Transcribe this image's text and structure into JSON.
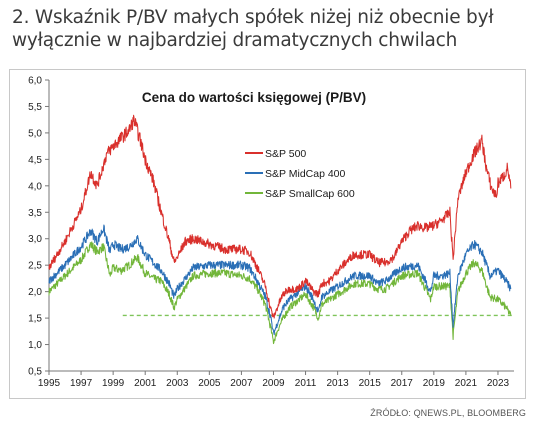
{
  "heading": "2. Wskaźnik P/BV małych spółek niżej niż obecnie był wyłącznie w najbardziej dramatycznych chwilach",
  "source": "ŹRÓDŁO: QNEWS.PL, BLOOMBERG",
  "chart_data": {
    "type": "line",
    "title": "Cena do wartości księgowej (P/BV)",
    "xlabel": "",
    "ylabel": "",
    "xlim": [
      1995,
      2024
    ],
    "ylim": [
      0.5,
      6.0
    ],
    "x_ticks": [
      "1995",
      "1997",
      "1999",
      "2001",
      "2003",
      "2005",
      "2007",
      "2009",
      "2011",
      "2013",
      "2015",
      "2017",
      "2019",
      "2021",
      "2023"
    ],
    "y_ticks": [
      "0,5",
      "1,0",
      "1,5",
      "2,0",
      "2,5",
      "3,0",
      "3,5",
      "4,0",
      "4,5",
      "5,0",
      "5,5",
      "6,0"
    ],
    "legend_position": "top-center",
    "grid": false,
    "series": [
      {
        "name": "S&P 500",
        "color": "#d9302c",
        "x": [
          1995.0,
          1996.0,
          1997.0,
          1997.6,
          1998.0,
          1998.6,
          1999.0,
          1999.5,
          2000.0,
          2000.3,
          2000.7,
          2001.0,
          2001.5,
          2002.0,
          2002.5,
          2002.8,
          2003.0,
          2003.5,
          2004.0,
          2005.0,
          2006.0,
          2007.0,
          2007.5,
          2008.0,
          2008.5,
          2008.8,
          2009.0,
          2009.3,
          2009.6,
          2010.0,
          2010.5,
          2011.0,
          2011.5,
          2011.8,
          2012.0,
          2012.5,
          2013.0,
          2014.0,
          2015.0,
          2015.5,
          2016.0,
          2016.5,
          2017.0,
          2017.5,
          2018.0,
          2018.5,
          2019.0,
          2019.5,
          2020.0,
          2020.2,
          2020.5,
          2021.0,
          2021.5,
          2022.0,
          2022.3,
          2022.6,
          2022.9,
          2023.0,
          2023.4,
          2023.6,
          2023.8
        ],
        "values": [
          2.45,
          2.95,
          3.55,
          4.25,
          4.0,
          4.6,
          4.75,
          4.9,
          5.05,
          5.25,
          4.85,
          4.5,
          4.1,
          3.5,
          2.95,
          2.55,
          2.65,
          2.95,
          3.0,
          2.9,
          2.8,
          2.8,
          2.75,
          2.45,
          2.1,
          1.7,
          1.5,
          1.75,
          1.95,
          2.05,
          2.05,
          2.2,
          2.0,
          1.95,
          2.15,
          2.2,
          2.4,
          2.7,
          2.7,
          2.55,
          2.55,
          2.65,
          2.95,
          3.15,
          3.25,
          3.2,
          3.25,
          3.35,
          3.5,
          2.6,
          3.75,
          4.25,
          4.6,
          4.85,
          4.3,
          3.95,
          3.8,
          4.05,
          4.2,
          4.35,
          3.95
        ]
      },
      {
        "name": "S&P MidCap 400",
        "color": "#2a6fb6",
        "x": [
          1995.0,
          1996.0,
          1997.0,
          1997.6,
          1998.0,
          1998.4,
          1998.8,
          1999.0,
          1999.5,
          2000.0,
          2000.5,
          2001.0,
          2001.5,
          2002.0,
          2002.5,
          2002.8,
          2003.0,
          2004.0,
          2005.0,
          2006.0,
          2007.0,
          2007.5,
          2008.0,
          2008.5,
          2008.8,
          2009.0,
          2009.3,
          2009.6,
          2010.0,
          2011.0,
          2011.5,
          2011.8,
          2012.0,
          2013.0,
          2014.0,
          2015.0,
          2015.5,
          2016.0,
          2017.0,
          2018.0,
          2018.8,
          2019.0,
          2019.5,
          2020.0,
          2020.2,
          2020.5,
          2021.0,
          2021.5,
          2022.0,
          2022.5,
          2023.0,
          2023.5,
          2023.8
        ],
        "values": [
          2.2,
          2.5,
          2.85,
          3.15,
          2.95,
          3.2,
          2.75,
          2.9,
          2.8,
          2.85,
          3.0,
          2.7,
          2.55,
          2.4,
          2.15,
          1.9,
          2.05,
          2.45,
          2.5,
          2.5,
          2.5,
          2.45,
          2.2,
          1.9,
          1.55,
          1.2,
          1.45,
          1.7,
          1.85,
          2.1,
          1.85,
          1.6,
          1.9,
          2.1,
          2.3,
          2.3,
          2.15,
          2.2,
          2.45,
          2.5,
          2.0,
          2.3,
          2.3,
          2.35,
          1.35,
          2.3,
          2.7,
          2.9,
          2.75,
          2.3,
          2.4,
          2.2,
          2.05
        ]
      },
      {
        "name": "S&P SmallCap 600",
        "color": "#72b63a",
        "x": [
          1995.0,
          1996.0,
          1997.0,
          1997.6,
          1998.0,
          1998.4,
          1998.8,
          1999.0,
          1999.5,
          2000.0,
          2000.5,
          2001.0,
          2001.5,
          2002.0,
          2002.5,
          2002.8,
          2003.0,
          2004.0,
          2005.0,
          2006.0,
          2007.0,
          2007.5,
          2008.0,
          2008.5,
          2008.8,
          2009.0,
          2009.3,
          2009.6,
          2010.0,
          2011.0,
          2011.5,
          2011.8,
          2012.0,
          2013.0,
          2014.0,
          2015.0,
          2015.5,
          2016.0,
          2017.0,
          2018.0,
          2018.8,
          2019.0,
          2019.5,
          2020.0,
          2020.2,
          2020.5,
          2021.0,
          2021.5,
          2022.0,
          2022.5,
          2023.0,
          2023.5,
          2023.8
        ],
        "values": [
          2.0,
          2.3,
          2.6,
          2.9,
          2.75,
          2.85,
          2.3,
          2.45,
          2.4,
          2.5,
          2.65,
          2.35,
          2.25,
          2.2,
          1.95,
          1.7,
          1.85,
          2.3,
          2.35,
          2.35,
          2.3,
          2.25,
          2.05,
          1.75,
          1.35,
          1.05,
          1.3,
          1.5,
          1.7,
          1.95,
          1.7,
          1.5,
          1.75,
          1.95,
          2.15,
          2.15,
          2.05,
          2.05,
          2.3,
          2.35,
          1.85,
          2.1,
          2.1,
          2.1,
          1.15,
          2.0,
          2.35,
          2.55,
          2.4,
          1.9,
          1.85,
          1.7,
          1.55
        ]
      }
    ],
    "reference_line": {
      "value": 1.55,
      "from": 1999.6,
      "to": 2024.0,
      "color": "#7fc45a",
      "style": "dashed"
    }
  }
}
